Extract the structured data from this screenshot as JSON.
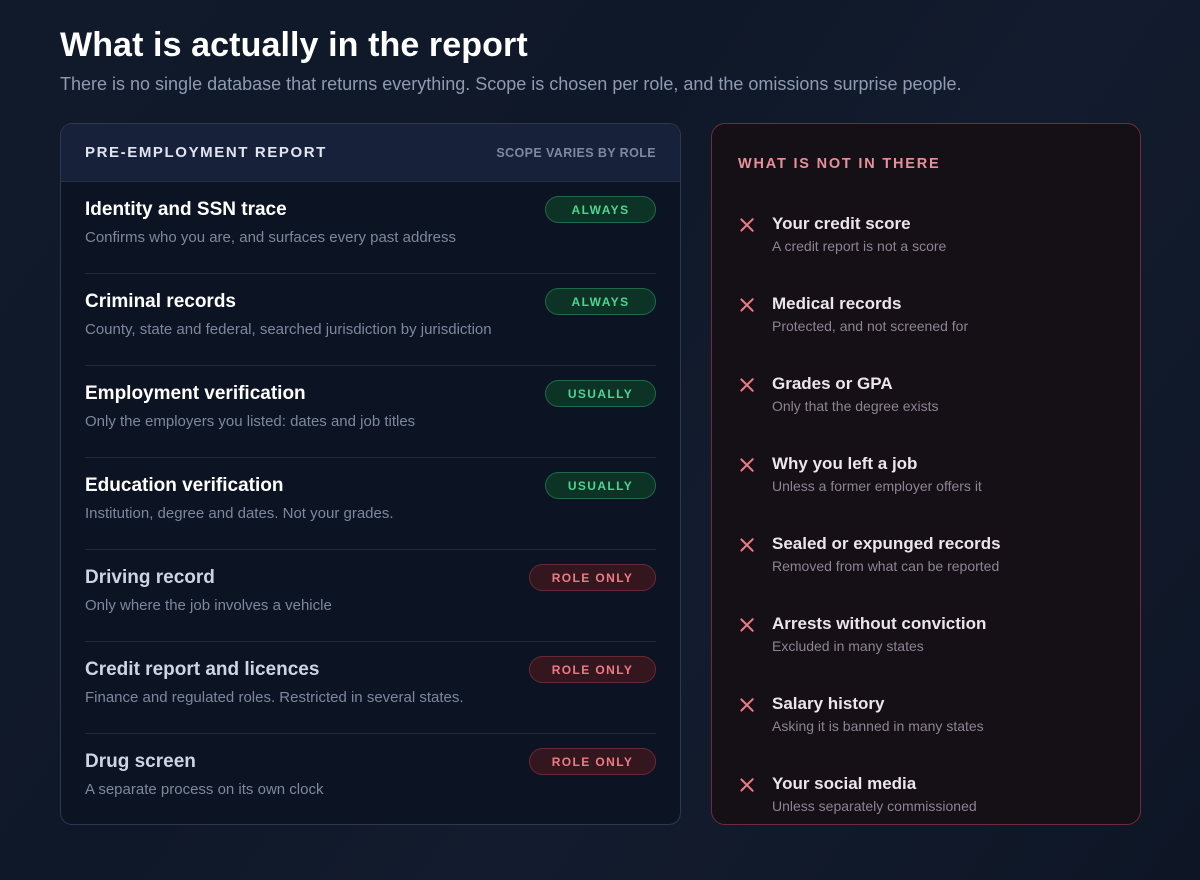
{
  "page": {
    "title": "What is actually in the report",
    "subtitle": "There is no single database that returns everything. Scope is chosen per role, and the omissions surprise people."
  },
  "report": {
    "title": "PRE-EMPLOYMENT REPORT",
    "scope_note": "SCOPE VARIES BY ROLE",
    "rows": [
      {
        "name": "Identity and SSN trace",
        "description": "Confirms who you are, and surfaces every past address",
        "badge": "ALWAYS",
        "badge_color": "#4dd68f"
      },
      {
        "name": "Criminal records",
        "description": "County, state and federal, searched jurisdiction by jurisdiction",
        "badge": "ALWAYS",
        "badge_color": "#4dd68f"
      },
      {
        "name": "Employment verification",
        "description": "Only the employers you listed: dates and job titles",
        "badge": "USUALLY",
        "badge_color": "#4dd68f"
      },
      {
        "name": "Education verification",
        "description": "Institution, degree and dates. Not your grades.",
        "badge": "USUALLY",
        "badge_color": "#4dd68f"
      },
      {
        "name": "Driving record",
        "description": "Only where the job involves a vehicle",
        "badge": "ROLE ONLY",
        "badge_color": "#f07a86"
      },
      {
        "name": "Credit report and licences",
        "description": "Finance and regulated roles. Restricted in several states.",
        "badge": "ROLE ONLY",
        "badge_color": "#f07a86"
      },
      {
        "name": "Drug screen",
        "description": "A separate process on its own clock",
        "badge": "ROLE ONLY",
        "badge_color": "#f07a86"
      }
    ]
  },
  "not_included": {
    "title": "WHAT IS NOT IN THERE",
    "icon": "x-icon",
    "items": [
      {
        "name": "Your credit score",
        "description": "A credit report is not a score"
      },
      {
        "name": "Medical records",
        "description": "Protected, and not screened for"
      },
      {
        "name": "Grades or GPA",
        "description": "Only that the degree exists"
      },
      {
        "name": "Why you left a job",
        "description": "Unless a former employer offers it"
      },
      {
        "name": "Sealed or expunged records",
        "description": "Removed from what can be reported"
      },
      {
        "name": "Arrests without conviction",
        "description": "Excluded in many states"
      },
      {
        "name": "Salary history",
        "description": "Asking it is banned in many states"
      },
      {
        "name": "Your social media",
        "description": "Unless separately commissioned"
      }
    ]
  }
}
